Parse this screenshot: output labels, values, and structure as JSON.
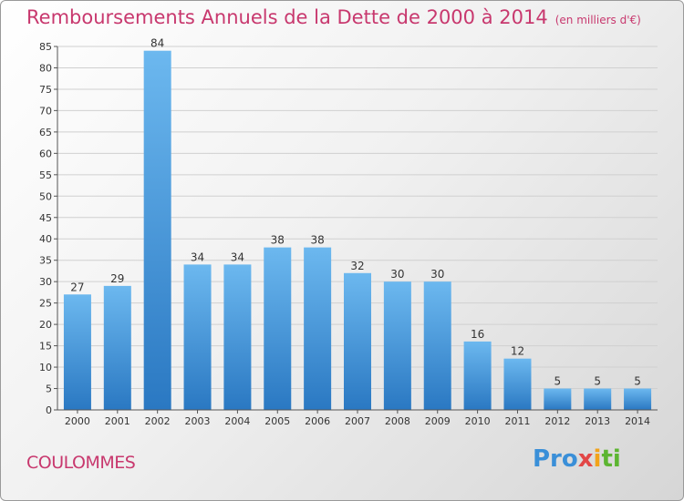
{
  "header": {
    "title": "Remboursements Annuels de la Dette de 2000 à 2014",
    "unit": "(en milliers d'€)"
  },
  "footer": {
    "commune": "COULOMMES",
    "logo": {
      "p1": "Pro",
      "p2": "x",
      "p3": "i",
      "p4": "ti"
    }
  },
  "colors": {
    "title": "#c8386e",
    "bar_top": "#6cb8ef",
    "bar_bottom": "#2a78c2"
  },
  "chart_data": {
    "type": "bar",
    "categories": [
      "2000",
      "2001",
      "2002",
      "2003",
      "2004",
      "2005",
      "2006",
      "2007",
      "2008",
      "2009",
      "2010",
      "2011",
      "2012",
      "2013",
      "2014"
    ],
    "values": [
      27,
      29,
      84,
      34,
      34,
      38,
      38,
      32,
      30,
      30,
      16,
      12,
      5,
      5,
      5
    ],
    "title": "Remboursements Annuels de la Dette de 2000 à 2014",
    "ylim": [
      0,
      85
    ],
    "yticks": [
      0,
      5,
      10,
      15,
      20,
      25,
      30,
      35,
      40,
      45,
      50,
      55,
      60,
      65,
      70,
      75,
      80,
      85
    ],
    "grid": true
  }
}
